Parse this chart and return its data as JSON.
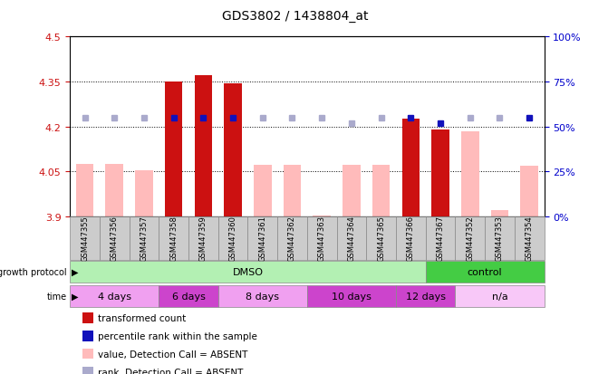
{
  "title": "GDS3802 / 1438804_at",
  "samples": [
    "GSM447355",
    "GSM447356",
    "GSM447357",
    "GSM447358",
    "GSM447359",
    "GSM447360",
    "GSM447361",
    "GSM447362",
    "GSM447363",
    "GSM447364",
    "GSM447365",
    "GSM447366",
    "GSM447367",
    "GSM447352",
    "GSM447353",
    "GSM447354"
  ],
  "red_bars": [
    null,
    null,
    null,
    4.35,
    4.37,
    4.345,
    null,
    null,
    null,
    null,
    null,
    4.225,
    4.19,
    null,
    null,
    null
  ],
  "pink_bars": [
    4.075,
    4.075,
    4.055,
    4.075,
    4.075,
    4.075,
    4.073,
    4.073,
    3.902,
    4.073,
    4.073,
    4.073,
    4.185,
    4.185,
    3.92,
    4.068
  ],
  "blue_dots": [
    null,
    null,
    null,
    55,
    55,
    55,
    null,
    null,
    null,
    null,
    null,
    55,
    52,
    null,
    null,
    55
  ],
  "lavender_dots": [
    55,
    55,
    55,
    null,
    null,
    null,
    55,
    55,
    55,
    52,
    55,
    null,
    null,
    55,
    55,
    null
  ],
  "ylim_left": [
    3.9,
    4.5
  ],
  "ylim_right": [
    0,
    100
  ],
  "yticks_left": [
    3.9,
    4.05,
    4.2,
    4.35,
    4.5
  ],
  "yticks_right": [
    0,
    25,
    50,
    75,
    100
  ],
  "dotted_lines": [
    4.05,
    4.2,
    4.35
  ],
  "groups": [
    {
      "label": "DMSO",
      "color": "#b3f0b3",
      "start": 0,
      "end": 12
    },
    {
      "label": "control",
      "color": "#44cc44",
      "start": 12,
      "end": 16
    }
  ],
  "time_groups": [
    {
      "label": "4 days",
      "color": "#f0a0f0",
      "start": 0,
      "end": 3
    },
    {
      "label": "6 days",
      "color": "#cc44cc",
      "start": 3,
      "end": 5
    },
    {
      "label": "8 days",
      "color": "#f0a0f0",
      "start": 5,
      "end": 8
    },
    {
      "label": "10 days",
      "color": "#cc44cc",
      "start": 8,
      "end": 11
    },
    {
      "label": "12 days",
      "color": "#cc44cc",
      "start": 11,
      "end": 13
    },
    {
      "label": "n/a",
      "color": "#f8c8f8",
      "start": 13,
      "end": 16
    }
  ],
  "bar_width": 0.6,
  "red_color": "#cc1111",
  "pink_color": "#ffbbbb",
  "blue_color": "#1111bb",
  "lavender_color": "#aaaacc",
  "title_fontsize": 10,
  "tick_fontsize": 7,
  "right_tick_color": "#0000cc",
  "left_tick_color": "#cc1111"
}
